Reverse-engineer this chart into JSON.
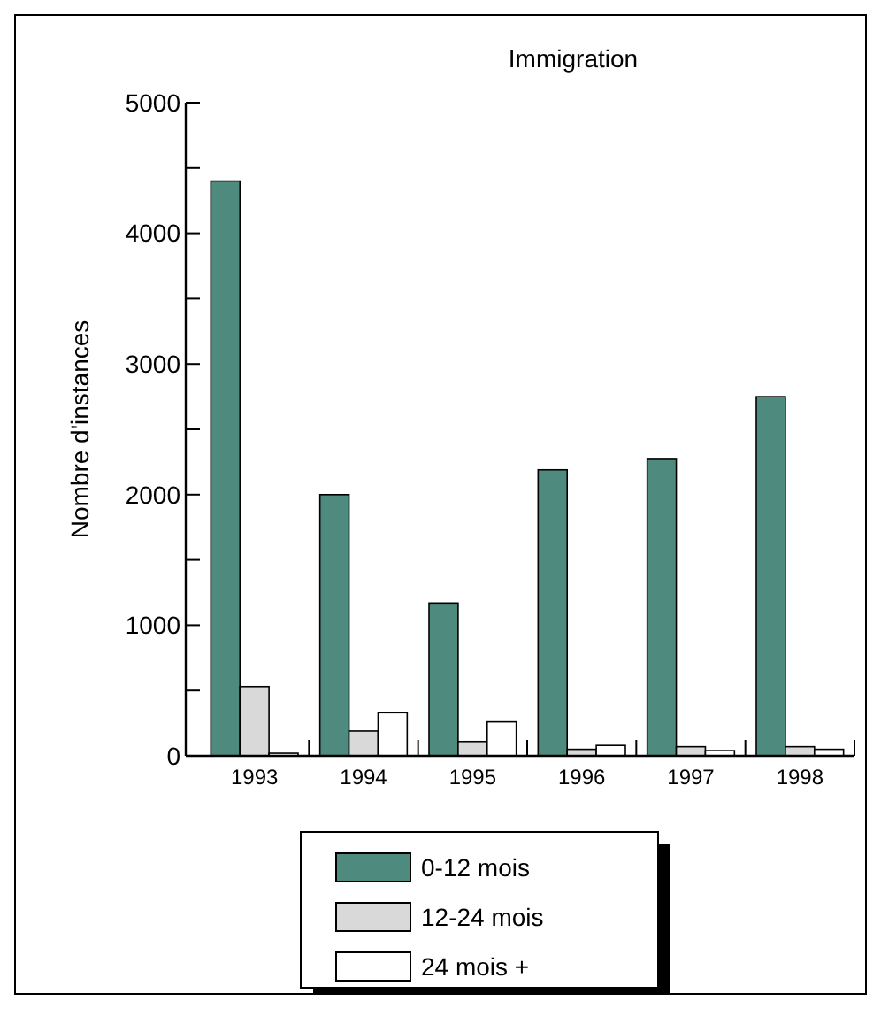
{
  "chart_data": {
    "type": "bar",
    "title": "Immigration",
    "ylabel": "Nombre d'instances",
    "categories": [
      "1993",
      "1994",
      "1995",
      "1996",
      "1997",
      "1998"
    ],
    "series": [
      {
        "name": "0-12 mois",
        "color": "#4e8b7e",
        "values": [
          4400,
          2000,
          1170,
          2190,
          2270,
          2750
        ]
      },
      {
        "name": "12-24 mois",
        "color": "#d9d9d9",
        "values": [
          530,
          190,
          110,
          50,
          70,
          70
        ]
      },
      {
        "name": "24 mois +",
        "color": "#ffffff",
        "values": [
          20,
          330,
          260,
          80,
          40,
          50
        ]
      }
    ],
    "ylim": [
      0,
      5000
    ],
    "yticks": [
      0,
      {
        "value": 500,
        "label": null
      },
      1000,
      {
        "value": 1500,
        "label": null
      },
      2000,
      {
        "value": 2500,
        "label": null
      },
      3000,
      {
        "value": 3500,
        "label": null
      },
      4000,
      {
        "value": 4500,
        "label": null
      },
      5000
    ],
    "grid": false,
    "legend": "bottom"
  }
}
